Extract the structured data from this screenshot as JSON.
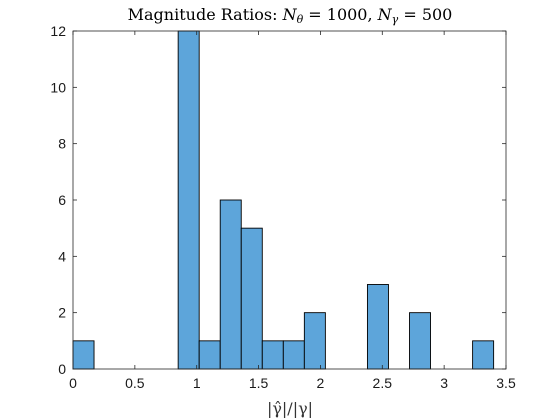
{
  "chart_data": {
    "type": "bar",
    "title": {
      "prefix": "Magnitude Ratios: ",
      "part1_var": "N",
      "part1_sub": "θ",
      "part1_val": " = 1000, ",
      "part2_var": "N",
      "part2_sub": "γ",
      "part2_val": " = 500"
    },
    "xlabel": "|γ̂|/|γ|",
    "ylabel": "",
    "xlim": [
      0,
      3.5
    ],
    "ylim": [
      0,
      12
    ],
    "xticks": [
      "0",
      "0.5",
      "1",
      "1.5",
      "2",
      "2.5",
      "3",
      "3.5"
    ],
    "yticks": [
      "0",
      "2",
      "4",
      "6",
      "8",
      "10",
      "12"
    ],
    "bin_width": 0.17,
    "bars": [
      {
        "x0": 0.0,
        "value": 1
      },
      {
        "x0": 0.85,
        "value": 12
      },
      {
        "x0": 1.02,
        "value": 1
      },
      {
        "x0": 1.19,
        "value": 6
      },
      {
        "x0": 1.36,
        "value": 5
      },
      {
        "x0": 1.53,
        "value": 1
      },
      {
        "x0": 1.7,
        "value": 1
      },
      {
        "x0": 1.87,
        "value": 2
      },
      {
        "x0": 2.38,
        "value": 3
      },
      {
        "x0": 2.72,
        "value": 2
      },
      {
        "x0": 3.23,
        "value": 1
      }
    ],
    "grid": false,
    "bar_color": "#5da5da"
  }
}
